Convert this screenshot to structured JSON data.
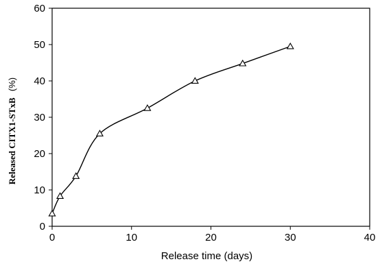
{
  "chart_data": {
    "type": "line",
    "title": "",
    "xlabel": "Release time (days)",
    "ylabel": "Released CITX1-STxB",
    "ylabel_unit": "(%)",
    "xlim": [
      0,
      40
    ],
    "ylim": [
      0,
      60
    ],
    "xticks": [
      0,
      10,
      20,
      30,
      40
    ],
    "yticks": [
      0,
      10,
      20,
      30,
      40,
      50,
      60
    ],
    "grid": false,
    "legend": "none",
    "marker": "open-triangle",
    "line_color": "#000000",
    "series": [
      {
        "x": [
          0,
          1,
          3,
          6,
          12,
          18,
          24,
          30
        ],
        "y": [
          3.5,
          8.3,
          13.8,
          25.5,
          32.5,
          40,
          44.8,
          49.5
        ]
      }
    ]
  }
}
